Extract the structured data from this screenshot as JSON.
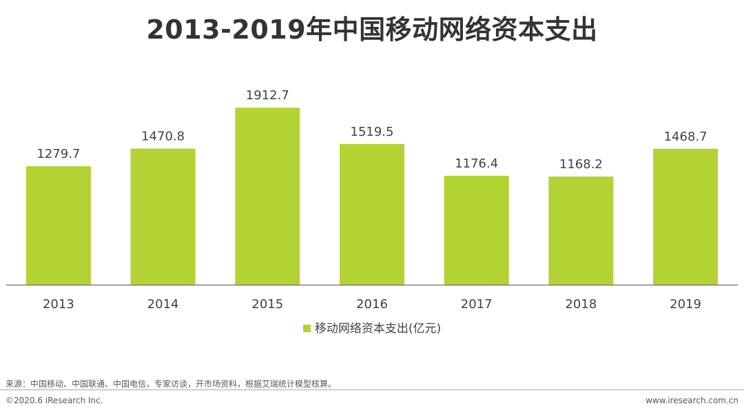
{
  "title": "2013-2019年中国移动网络资本支出",
  "chart_data": {
    "type": "bar",
    "categories": [
      "2013",
      "2014",
      "2015",
      "2016",
      "2017",
      "2018",
      "2019"
    ],
    "series": [
      {
        "name": "移动网络资本支出(亿元)",
        "values": [
          1279.7,
          1470.8,
          1912.7,
          1519.5,
          1176.4,
          1168.2,
          1468.7
        ],
        "value_labels": [
          "1279.7",
          "1470.8",
          "1912.7",
          "1519.5",
          "1176.4",
          "1168.2",
          "1468.7"
        ]
      }
    ],
    "ylim": [
      0,
      2000
    ],
    "grid": false,
    "legend_position": "bottom-center",
    "bar_color": "#b3d334"
  },
  "legend": {
    "label": "移动网络资本支出(亿元)",
    "color": "#b3d334"
  },
  "footer": {
    "source": "来源：中国移动、中国联通、中国电信，专家访谈，开市场资料，根据艾瑞统计模型核算。",
    "copyright": "©2020.6 iResearch Inc.",
    "website": "www.iresearch.com.cn"
  }
}
